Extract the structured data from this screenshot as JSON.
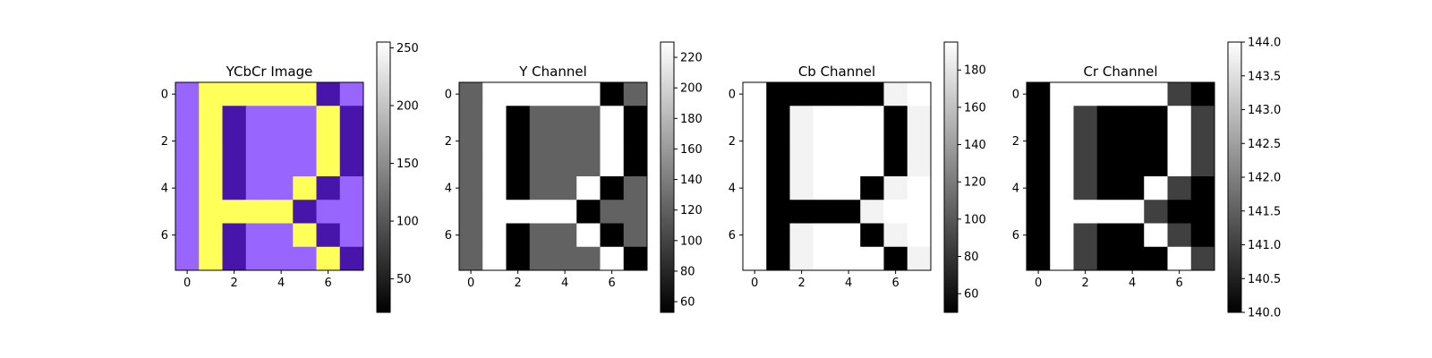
{
  "chart_data": [
    {
      "type": "heatmap",
      "title": "YCbCr Image",
      "colormap": "rgb",
      "grid": false,
      "x_ticks": [
        "0",
        "2",
        "4",
        "6"
      ],
      "y_ticks": [
        "0",
        "2",
        "4",
        "6"
      ],
      "colorbar_range": [
        21,
        255
      ],
      "colorbar_ticks": [
        "50",
        "100",
        "150",
        "200",
        "250"
      ],
      "palette": {
        "violet": "#9965FF",
        "yellow": "#FFFF5A",
        "indigo": "#4715AA"
      },
      "rows": [
        [
          "violet",
          "yellow",
          "yellow",
          "yellow",
          "yellow",
          "yellow",
          "indigo",
          "violet"
        ],
        [
          "violet",
          "yellow",
          "indigo",
          "violet",
          "violet",
          "violet",
          "yellow",
          "indigo"
        ],
        [
          "violet",
          "yellow",
          "indigo",
          "violet",
          "violet",
          "violet",
          "yellow",
          "indigo"
        ],
        [
          "violet",
          "yellow",
          "indigo",
          "violet",
          "violet",
          "violet",
          "yellow",
          "indigo"
        ],
        [
          "violet",
          "yellow",
          "indigo",
          "violet",
          "violet",
          "yellow",
          "indigo",
          "violet"
        ],
        [
          "violet",
          "yellow",
          "yellow",
          "yellow",
          "yellow",
          "indigo",
          "violet",
          "violet"
        ],
        [
          "violet",
          "yellow",
          "indigo",
          "violet",
          "violet",
          "yellow",
          "indigo",
          "violet"
        ],
        [
          "violet",
          "yellow",
          "indigo",
          "violet",
          "violet",
          "violet",
          "yellow",
          "indigo"
        ]
      ]
    },
    {
      "type": "heatmap",
      "title": "Y Channel",
      "colormap": "gray",
      "grid": false,
      "x_ticks": [
        "0",
        "2",
        "4",
        "6"
      ],
      "y_ticks": [
        "0",
        "2",
        "4",
        "6"
      ],
      "vmin": 53,
      "vmax": 230,
      "colorbar_ticks": [
        "60",
        "80",
        "100",
        "120",
        "140",
        "160",
        "180",
        "200",
        "220"
      ],
      "values": [
        [
          121,
          230,
          230,
          230,
          230,
          230,
          53,
          121
        ],
        [
          121,
          230,
          53,
          121,
          121,
          121,
          230,
          53
        ],
        [
          121,
          230,
          53,
          121,
          121,
          121,
          230,
          53
        ],
        [
          121,
          230,
          53,
          121,
          121,
          121,
          230,
          53
        ],
        [
          121,
          230,
          53,
          121,
          121,
          230,
          53,
          121
        ],
        [
          121,
          230,
          230,
          230,
          230,
          53,
          121,
          121
        ],
        [
          121,
          230,
          53,
          121,
          121,
          230,
          53,
          121
        ],
        [
          121,
          230,
          53,
          121,
          121,
          121,
          230,
          53
        ]
      ]
    },
    {
      "type": "heatmap",
      "title": "Cb Channel",
      "colormap": "gray",
      "grid": false,
      "x_ticks": [
        "0",
        "2",
        "4",
        "6"
      ],
      "y_ticks": [
        "0",
        "2",
        "4",
        "6"
      ],
      "vmin": 50,
      "vmax": 195,
      "colorbar_ticks": [
        "60",
        "80",
        "100",
        "120",
        "140",
        "160",
        "180"
      ],
      "values": [
        [
          195,
          50,
          50,
          50,
          50,
          50,
          188,
          195
        ],
        [
          195,
          50,
          188,
          195,
          195,
          195,
          50,
          188
        ],
        [
          195,
          50,
          188,
          195,
          195,
          195,
          50,
          188
        ],
        [
          195,
          50,
          188,
          195,
          195,
          195,
          50,
          188
        ],
        [
          195,
          50,
          188,
          195,
          195,
          50,
          188,
          195
        ],
        [
          195,
          50,
          50,
          50,
          50,
          188,
          195,
          195
        ],
        [
          195,
          50,
          188,
          195,
          195,
          50,
          188,
          195
        ],
        [
          195,
          50,
          188,
          195,
          195,
          195,
          50,
          188
        ]
      ]
    },
    {
      "type": "heatmap",
      "title": "Cr Channel",
      "colormap": "gray",
      "grid": false,
      "x_ticks": [
        "0",
        "2",
        "4",
        "6"
      ],
      "y_ticks": [
        "0",
        "2",
        "4",
        "6"
      ],
      "vmin": 140.0,
      "vmax": 144.0,
      "colorbar_ticks": [
        "140.0",
        "140.5",
        "141.0",
        "141.5",
        "142.0",
        "142.5",
        "143.0",
        "143.5",
        "144.0"
      ],
      "values": [
        [
          140,
          144,
          144,
          144,
          144,
          144,
          141,
          140
        ],
        [
          140,
          144,
          141,
          140,
          140,
          140,
          144,
          141
        ],
        [
          140,
          144,
          141,
          140,
          140,
          140,
          144,
          141
        ],
        [
          140,
          144,
          141,
          140,
          140,
          140,
          144,
          141
        ],
        [
          140,
          144,
          141,
          140,
          140,
          144,
          141,
          140
        ],
        [
          140,
          144,
          144,
          144,
          144,
          141,
          140,
          140
        ],
        [
          140,
          144,
          141,
          140,
          140,
          144,
          141,
          140
        ],
        [
          140,
          144,
          141,
          140,
          140,
          140,
          144,
          141
        ]
      ]
    }
  ]
}
